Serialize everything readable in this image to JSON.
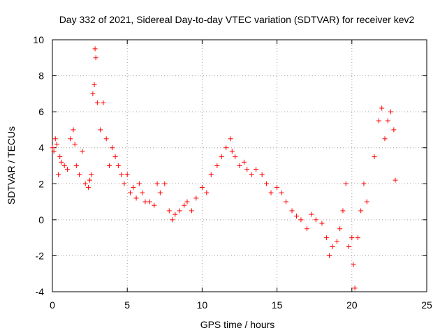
{
  "chart_data": {
    "type": "scatter",
    "title": "Day 332 of 2021, Sidereal Day-to-day VTEC variation (SDTVAR) for receiver kev2",
    "xlabel": "GPS time / hours",
    "ylabel": "SDTVAR / TECUs",
    "xlim": [
      0,
      25
    ],
    "ylim": [
      -4,
      10
    ],
    "xticks": [
      "0",
      "5",
      "10",
      "15",
      "20",
      "25"
    ],
    "yticks": [
      "-4",
      "-2",
      "0",
      "2",
      "4",
      "6",
      "8",
      "10"
    ],
    "grid": true,
    "marker": "+",
    "color": "#ff0000",
    "series": [
      {
        "name": "SDTVAR",
        "x": [
          0.0,
          0.1,
          0.2,
          0.3,
          0.4,
          0.5,
          0.6,
          0.8,
          1.0,
          1.2,
          1.4,
          1.5,
          1.6,
          1.8,
          2.0,
          2.2,
          2.4,
          2.5,
          2.6,
          2.7,
          2.8,
          2.85,
          2.9,
          3.0,
          3.2,
          3.4,
          3.6,
          3.8,
          4.0,
          4.2,
          4.4,
          4.6,
          4.8,
          5.0,
          5.2,
          5.4,
          5.6,
          5.8,
          6.0,
          6.2,
          6.5,
          6.8,
          7.0,
          7.2,
          7.5,
          7.8,
          8.0,
          8.2,
          8.5,
          8.8,
          9.0,
          9.3,
          9.6,
          10.0,
          10.3,
          10.6,
          11.0,
          11.3,
          11.6,
          11.9,
          12.0,
          12.2,
          12.5,
          12.8,
          13.0,
          13.3,
          13.6,
          14.0,
          14.3,
          14.6,
          15.0,
          15.3,
          15.6,
          16.0,
          16.3,
          16.6,
          17.0,
          17.3,
          17.6,
          18.0,
          18.3,
          18.5,
          18.7,
          19.0,
          19.2,
          19.4,
          19.6,
          19.8,
          20.0,
          20.1,
          20.2,
          20.4,
          20.6,
          20.8,
          21.0,
          21.5,
          21.8,
          22.0,
          22.2,
          22.4,
          22.6,
          22.8,
          22.9
        ],
        "y": [
          4.0,
          3.8,
          4.5,
          4.2,
          2.5,
          3.5,
          3.2,
          3.0,
          2.8,
          4.5,
          5.0,
          4.2,
          3.0,
          2.5,
          3.8,
          2.0,
          1.8,
          2.2,
          2.5,
          7.0,
          7.5,
          9.5,
          9.0,
          6.5,
          5.0,
          6.5,
          4.5,
          3.0,
          4.0,
          3.5,
          3.0,
          2.5,
          2.0,
          2.5,
          1.5,
          1.8,
          1.2,
          2.0,
          1.5,
          1.0,
          1.0,
          0.8,
          2.0,
          1.5,
          2.0,
          0.5,
          0.0,
          0.3,
          0.5,
          0.8,
          1.0,
          0.5,
          1.2,
          1.8,
          1.5,
          2.5,
          3.0,
          3.5,
          4.0,
          4.5,
          3.8,
          3.5,
          3.0,
          3.2,
          2.8,
          2.5,
          2.8,
          2.5,
          2.0,
          1.5,
          1.8,
          1.5,
          1.0,
          0.5,
          0.2,
          0.0,
          -0.5,
          0.3,
          0.0,
          -0.2,
          -1.0,
          -2.0,
          -1.5,
          -1.2,
          -0.5,
          0.5,
          2.0,
          -1.5,
          -1.0,
          -2.5,
          -3.8,
          -1.0,
          0.5,
          2.0,
          1.0,
          3.5,
          5.5,
          6.2,
          4.5,
          5.5,
          6.0,
          5.0,
          2.2
        ]
      }
    ]
  }
}
